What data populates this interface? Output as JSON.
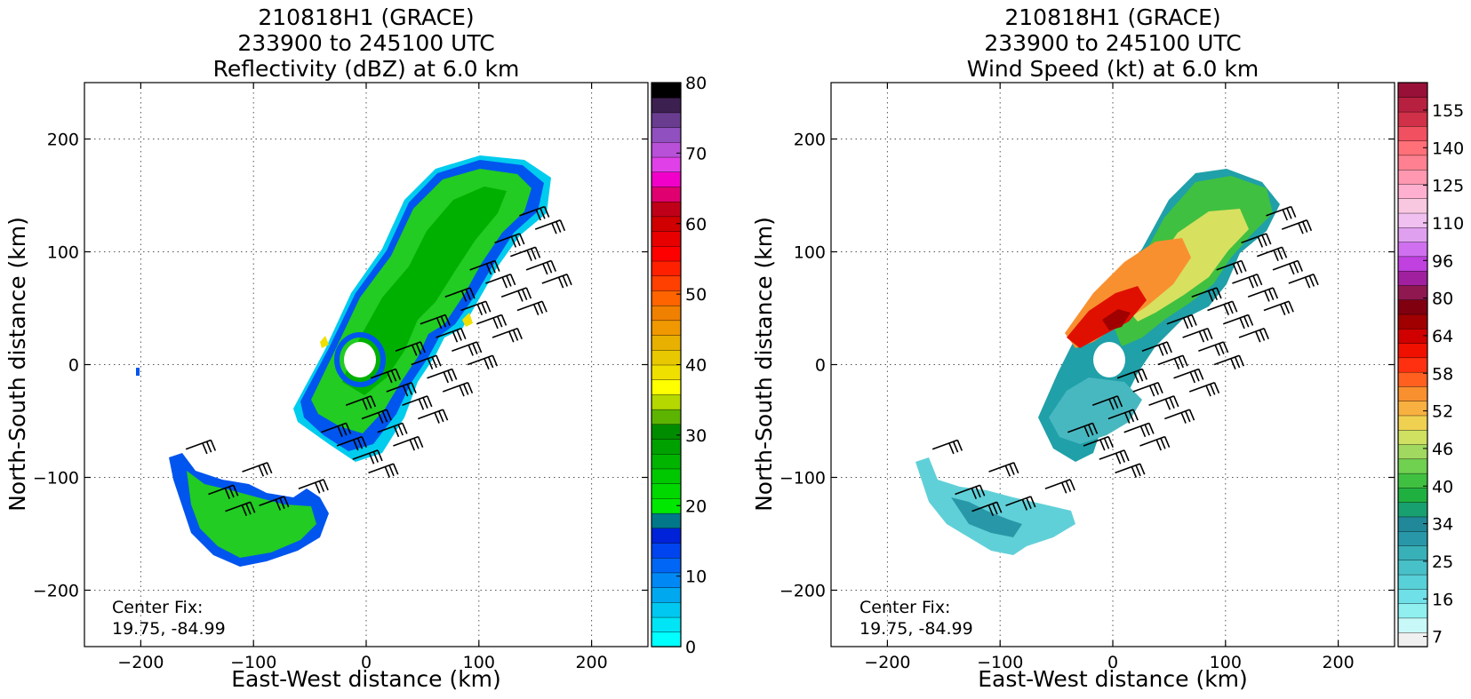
{
  "figure": {
    "panels": [
      {
        "id": "refl",
        "title_lines": [
          "210818H1 (GRACE)",
          "233900 to 245100 UTC",
          "Reflectivity (dBZ) at 6.0 km"
        ],
        "center_fix_label": "Center Fix:",
        "center_fix_value": "19.75, -84.99"
      },
      {
        "id": "wind",
        "title_lines": [
          "210818H1 (GRACE)",
          "233900 to 245100 UTC",
          "Wind Speed (kt) at 6.0 km"
        ],
        "center_fix_label": "Center Fix:",
        "center_fix_value": "19.75, -84.99"
      }
    ]
  },
  "chart_data": [
    {
      "type": "heatmap",
      "title": "210818H1 (GRACE) 233900 to 245100 UTC Reflectivity (dBZ) at 6.0 km",
      "xlabel": "East-West distance (km)",
      "ylabel": "North-South distance (km)",
      "xlim": [
        -250,
        250
      ],
      "ylim": [
        -250,
        250
      ],
      "x_ticks": [
        -200,
        -100,
        0,
        100,
        200
      ],
      "y_ticks": [
        -200,
        -100,
        0,
        100,
        200
      ],
      "grid": "dotted",
      "center_fix": [
        19.75,
        -84.99
      ],
      "colorbar": {
        "min": 0,
        "max": 80,
        "tick_values": [
          0,
          10,
          20,
          30,
          40,
          50,
          60,
          70,
          80
        ],
        "tick_labels": [
          "0",
          "10",
          "20",
          "30",
          "40",
          "50",
          "60",
          "70",
          "80"
        ],
        "colors": [
          "#00ffff",
          "#00e5f5",
          "#00c8f0",
          "#00a8f0",
          "#0088f5",
          "#0066f5",
          "#0044f0",
          "#0022d8",
          "#00788a",
          "#00e800",
          "#00d800",
          "#00c800",
          "#00b400",
          "#00a000",
          "#008c00",
          "#5cb400",
          "#b4d800",
          "#ffff00",
          "#f0e000",
          "#e8c800",
          "#e8b000",
          "#f09800",
          "#f08000",
          "#ff6400",
          "#ff4000",
          "#ff2000",
          "#ff0000",
          "#e80000",
          "#d00000",
          "#c00018",
          "#e00070",
          "#f000c8",
          "#e040e8",
          "#b850d8",
          "#9050c0",
          "#6a3c90",
          "#3c2050",
          "#000000"
        ]
      },
      "barbs": true
    },
    {
      "type": "heatmap",
      "title": "210818H1 (GRACE) 233900 to 245100 UTC Wind Speed (kt) at 6.0 km",
      "xlabel": "East-West distance (km)",
      "ylabel": "North-South distance (km)",
      "xlim": [
        -250,
        250
      ],
      "ylim": [
        -250,
        250
      ],
      "x_ticks": [
        -200,
        -100,
        0,
        100,
        200
      ],
      "y_ticks": [
        -200,
        -100,
        0,
        100,
        200
      ],
      "grid": "dotted",
      "center_fix": [
        19.75,
        -84.99
      ],
      "colorbar": {
        "tick_labels": [
          "7",
          "16",
          "25",
          "34",
          "40",
          "46",
          "52",
          "58",
          "64",
          "80",
          "96",
          "110",
          "125",
          "140",
          "155"
        ],
        "colors": [
          "#f0f0f0",
          "#c8f8f8",
          "#90f0f0",
          "#70e0e8",
          "#58d0d8",
          "#48c0c8",
          "#38b0b8",
          "#2898a8",
          "#208898",
          "#18a070",
          "#20b040",
          "#40c040",
          "#70d050",
          "#a0d860",
          "#d0e060",
          "#f0d050",
          "#f8b040",
          "#f89030",
          "#ff6020",
          "#ff3010",
          "#f01000",
          "#d00000",
          "#a00000",
          "#800010",
          "#901850",
          "#a020a0",
          "#c040e0",
          "#d070f0",
          "#e0a0f0",
          "#f0c0f0",
          "#f8c8e0",
          "#ffb0d0",
          "#ff98b0",
          "#ff8090",
          "#ff7078",
          "#f05060",
          "#d03048",
          "#b82040",
          "#981038"
        ]
      },
      "barbs": true
    }
  ]
}
